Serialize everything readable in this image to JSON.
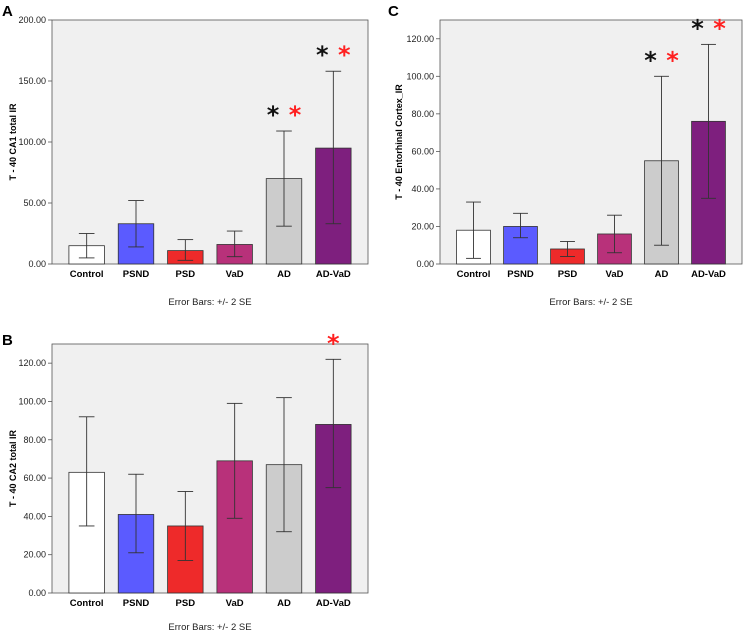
{
  "chart_data": [
    {
      "panel": "A",
      "type": "bar",
      "ylabel": "T - 40  CA1 total IR",
      "caption": "Error Bars: +/- 2 SE",
      "categories": [
        "Control",
        "PSND",
        "PSD",
        "VaD",
        "AD",
        "AD-VaD"
      ],
      "values": [
        15,
        33,
        11,
        16,
        70,
        95
      ],
      "err_low": [
        5,
        14,
        3,
        6,
        31,
        33
      ],
      "err_high": [
        25,
        52,
        20,
        27,
        109,
        158
      ],
      "colors": [
        "#ffffff",
        "#5b5bff",
        "#ee2a2a",
        "#b8317a",
        "#cccccc",
        "#7e1f7e"
      ],
      "ylim": [
        0,
        200
      ],
      "yticks": [
        0,
        50,
        100,
        150,
        200
      ],
      "ytick_labels": [
        "0.00",
        "50.00",
        "100.00",
        "150.00",
        "200.00"
      ],
      "stars": [
        {
          "category": "AD",
          "black": "*",
          "red": "*"
        },
        {
          "category": "AD-VaD",
          "black": "*",
          "red": "*"
        }
      ]
    },
    {
      "panel": "C",
      "type": "bar",
      "ylabel": "T - 40  Entorhinal Cortex_IR",
      "caption": "Error Bars: +/- 2 SE",
      "categories": [
        "Control",
        "PSND",
        "PSD",
        "VaD",
        "AD",
        "AD-VaD"
      ],
      "values": [
        18,
        20,
        8,
        16,
        55,
        76
      ],
      "err_low": [
        3,
        14,
        4,
        6,
        10,
        35
      ],
      "err_high": [
        33,
        27,
        12,
        26,
        100,
        117
      ],
      "colors": [
        "#ffffff",
        "#5b5bff",
        "#ee2a2a",
        "#b8317a",
        "#cccccc",
        "#7e1f7e"
      ],
      "ylim": [
        0,
        130
      ],
      "yticks": [
        0,
        20,
        40,
        60,
        80,
        100,
        120
      ],
      "ytick_labels": [
        "0.00",
        "20.00",
        "40.00",
        "60.00",
        "80.00",
        "100.00",
        "120.00"
      ],
      "stars": [
        {
          "category": "AD",
          "black": "*",
          "red": "*"
        },
        {
          "category": "AD-VaD",
          "black": "*",
          "red": "*"
        }
      ]
    },
    {
      "panel": "B",
      "type": "bar",
      "ylabel": "T - 40 CA2 total IR",
      "caption": "Error Bars: +/- 2 SE",
      "categories": [
        "Control",
        "PSND",
        "PSD",
        "VaD",
        "AD",
        "AD-VaD"
      ],
      "values": [
        63,
        41,
        35,
        69,
        67,
        88
      ],
      "err_low": [
        35,
        21,
        17,
        39,
        32,
        55
      ],
      "err_high": [
        92,
        62,
        53,
        99,
        102,
        122
      ],
      "colors": [
        "#ffffff",
        "#5b5bff",
        "#ee2a2a",
        "#b8317a",
        "#cccccc",
        "#7e1f7e"
      ],
      "ylim": [
        0,
        130
      ],
      "yticks": [
        0,
        20,
        40,
        60,
        80,
        100,
        120
      ],
      "ytick_labels": [
        "0.00",
        "20.00",
        "40.00",
        "60.00",
        "80.00",
        "100.00",
        "120.00"
      ],
      "stars": [
        {
          "category": "AD-VaD",
          "black": "",
          "red": "*"
        }
      ]
    }
  ],
  "colors": {
    "black_star": "#111111",
    "red_star": "#ff2020",
    "plot_bg": "#f0f0f0"
  }
}
